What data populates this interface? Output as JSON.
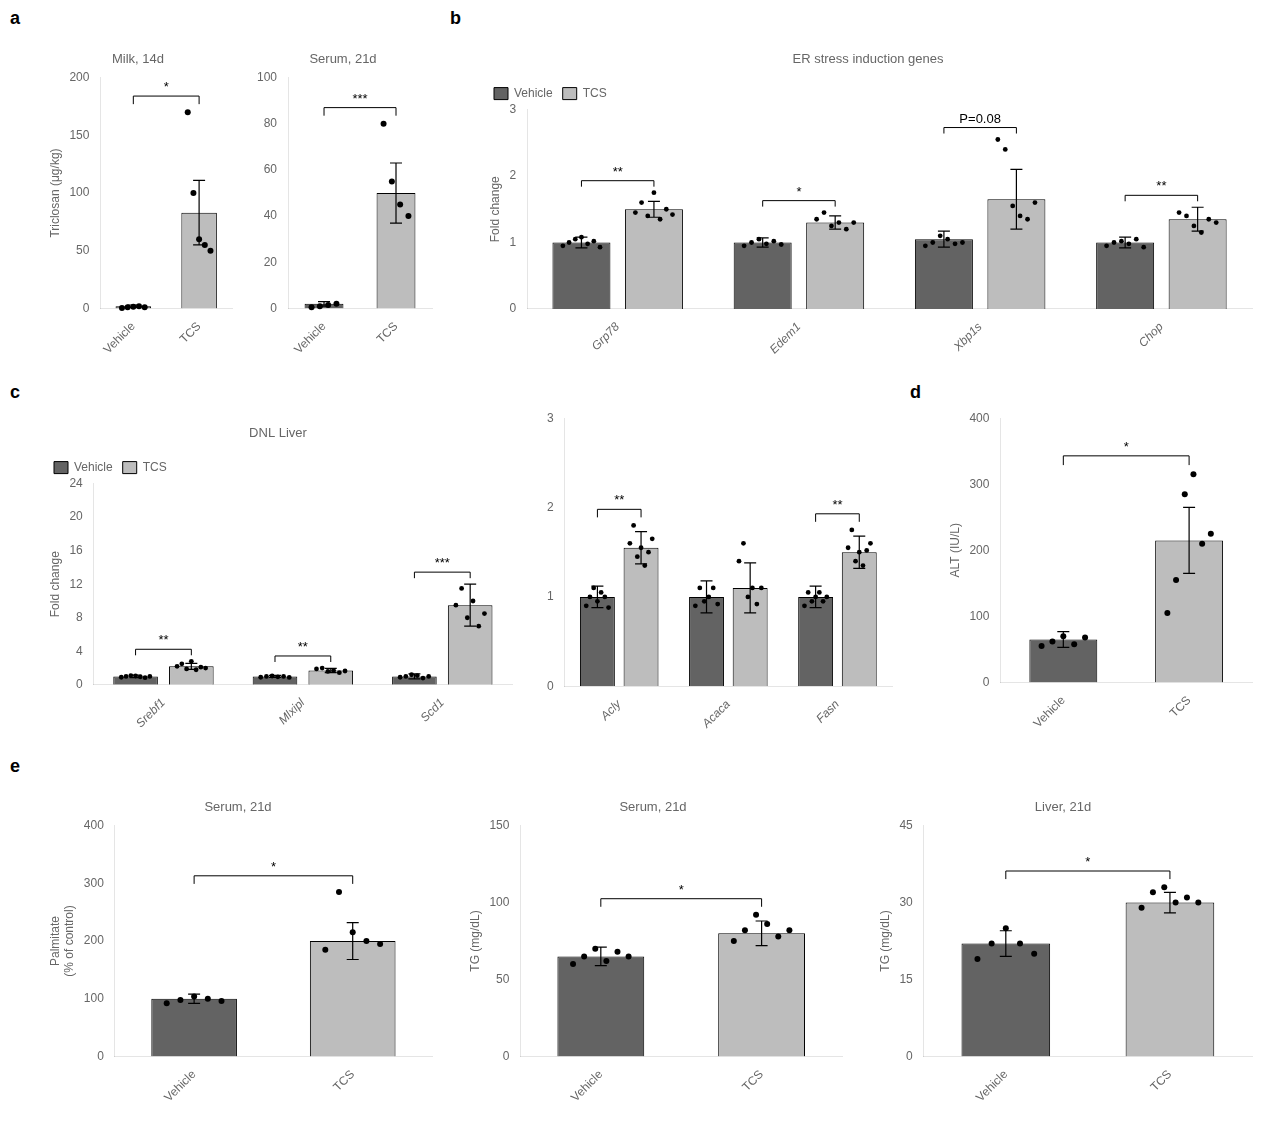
{
  "chart_data": [
    {
      "type": "bar",
      "panel": "a",
      "title": "Milk, 14d",
      "ylabel": "Triclosan (μg/kg)",
      "categories": [
        "Vehicle",
        "TCS"
      ],
      "values": [
        2,
        83
      ],
      "errors": [
        1,
        28
      ],
      "points": [
        [
          0.5,
          1.0,
          1.5,
          2.0,
          1.0
        ],
        [
          170,
          100,
          60,
          55,
          50
        ]
      ],
      "colors": [
        "#636363",
        "#bdbdbd"
      ],
      "ylim": [
        0,
        200
      ],
      "yticks": [
        0,
        50,
        100,
        150,
        200
      ],
      "annotations": [
        "*"
      ],
      "grid": false
    },
    {
      "type": "bar",
      "title": "Serum, 21d",
      "categories": [
        "Vehicle",
        "TCS"
      ],
      "values": [
        2,
        50
      ],
      "errors": [
        1,
        13
      ],
      "points": [
        [
          0.5,
          1.0,
          1.5,
          2.0
        ],
        [
          80,
          55,
          45,
          40
        ]
      ],
      "colors": [
        "#636363",
        "#bdbdbd"
      ],
      "ylim": [
        0,
        100
      ],
      "yticks": [
        0,
        20,
        40,
        60,
        80,
        100
      ],
      "annotations": [
        "***"
      ],
      "grid": false
    },
    {
      "type": "bar",
      "panel": "b",
      "title": "ER stress induction genes",
      "ylabel": "Fold change",
      "categories": [
        "Grp78",
        "Edem1",
        "Xbp1s",
        "Chop"
      ],
      "series": [
        {
          "name": "Vehicle",
          "color": "#636363",
          "values": [
            1.0,
            1.0,
            1.05,
            1.0
          ],
          "errors": [
            0.08,
            0.07,
            0.12,
            0.08
          ],
          "points": [
            [
              0.95,
              1.0,
              1.05,
              1.08,
              0.98,
              1.02,
              0.93
            ],
            [
              0.95,
              1.0,
              1.05,
              0.98,
              1.02,
              0.97
            ],
            [
              0.95,
              1.0,
              1.1,
              1.05,
              0.98,
              1.0
            ],
            [
              0.95,
              1.0,
              1.02,
              0.98,
              1.05,
              0.93
            ]
          ]
        },
        {
          "name": "TCS",
          "color": "#bdbdbd",
          "values": [
            1.5,
            1.3,
            1.65,
            1.35
          ],
          "errors": [
            0.12,
            0.1,
            0.45,
            0.18
          ],
          "points": [
            [
              1.45,
              1.6,
              1.4,
              1.75,
              1.35,
              1.5,
              1.42
            ],
            [
              1.35,
              1.45,
              1.25,
              1.3,
              1.2,
              1.3
            ],
            [
              2.55,
              2.4,
              1.55,
              1.4,
              1.35,
              1.6
            ],
            [
              1.45,
              1.4,
              1.25,
              1.15,
              1.35,
              1.3
            ]
          ]
        }
      ],
      "ylim": [
        0,
        3
      ],
      "yticks": [
        0,
        1,
        2,
        3
      ],
      "annotations": [
        "**",
        "*",
        "P=0.08",
        "**"
      ],
      "legend": "upper left",
      "grid": false
    },
    {
      "type": "bar",
      "panel": "c",
      "title": "DNL Liver",
      "ylabel": "Fold change",
      "categories": [
        "Srebf1",
        "Mlxipl",
        "Scd1"
      ],
      "series": [
        {
          "name": "Vehicle",
          "color": "#636363",
          "values": [
            1.0,
            1.0,
            1.0
          ],
          "errors": [
            0.15,
            0.12,
            0.3
          ],
          "points": [
            [
              0.9,
              1.0,
              1.1,
              1.05,
              0.95,
              0.85,
              1.0
            ],
            [
              0.9,
              1.0,
              1.05,
              0.95,
              1.0,
              0.88
            ],
            [
              0.9,
              1.0,
              1.2,
              1.1,
              0.8,
              1.0
            ]
          ]
        },
        {
          "name": "TCS",
          "color": "#bdbdbd",
          "values": [
            2.2,
            1.7,
            9.5
          ],
          "errors": [
            0.35,
            0.25,
            2.5
          ],
          "points": [
            [
              2.2,
              2.5,
              1.9,
              2.8,
              1.8,
              2.1,
              2.0
            ],
            [
              1.9,
              2.0,
              1.6,
              1.7,
              1.45,
              1.65
            ],
            [
              9.5,
              11.5,
              8.0,
              10.0,
              7.0,
              8.5
            ]
          ]
        }
      ],
      "ylim": [
        0,
        24
      ],
      "yticks": [
        0,
        4,
        8,
        12,
        16,
        20,
        24
      ],
      "annotations": [
        "**",
        "**",
        "***"
      ],
      "legend": "upper left",
      "grid": false
    },
    {
      "type": "bar",
      "categories": [
        "Acly",
        "Acaca",
        "Fasn"
      ],
      "series": [
        {
          "name": "Vehicle",
          "color": "#636363",
          "values": [
            1.0,
            1.0,
            1.0
          ],
          "errors": [
            0.12,
            0.18,
            0.12
          ],
          "points": [
            [
              0.9,
              1.0,
              1.1,
              0.95,
              1.05,
              1.0,
              0.88
            ],
            [
              0.9,
              1.1,
              0.95,
              1.0,
              1.1,
              0.92
            ],
            [
              0.9,
              1.05,
              0.95,
              1.0,
              1.05,
              0.95,
              1.0
            ]
          ]
        },
        {
          "name": "TCS",
          "color": "#bdbdbd",
          "values": [
            1.55,
            1.1,
            1.5
          ],
          "errors": [
            0.18,
            0.28,
            0.18
          ],
          "points": [
            [
              1.6,
              1.8,
              1.45,
              1.55,
              1.35,
              1.5,
              1.65
            ],
            [
              1.4,
              1.6,
              1.0,
              1.1,
              0.92,
              1.1
            ],
            [
              1.55,
              1.75,
              1.4,
              1.5,
              1.35,
              1.52,
              1.6
            ]
          ]
        }
      ],
      "ylim": [
        0,
        3
      ],
      "yticks": [
        0,
        1,
        2,
        3
      ],
      "annotations": [
        "**",
        null,
        "**"
      ],
      "grid": false
    },
    {
      "type": "bar",
      "panel": "d",
      "ylabel": "ALT (IU/L)",
      "categories": [
        "Vehicle",
        "TCS"
      ],
      "values": [
        65,
        215
      ],
      "errors": [
        12,
        50
      ],
      "points": [
        [
          55,
          62,
          70,
          58,
          68
        ],
        [
          105,
          155,
          285,
          315,
          210,
          225
        ]
      ],
      "colors": [
        "#636363",
        "#bdbdbd"
      ],
      "ylim": [
        0,
        400
      ],
      "yticks": [
        0,
        100,
        200,
        300,
        400
      ],
      "annotations": [
        "*"
      ],
      "grid": false
    },
    {
      "type": "bar",
      "panel": "e",
      "title": "Serum, 21d",
      "ylabel": "Palmitate\n(% of control)",
      "categories": [
        "Vehicle",
        "TCS"
      ],
      "values": [
        100,
        200
      ],
      "errors": [
        8,
        32
      ],
      "points": [
        [
          92,
          98,
          104,
          100,
          96
        ],
        [
          185,
          285,
          215,
          200,
          195
        ]
      ],
      "colors": [
        "#636363",
        "#bdbdbd"
      ],
      "ylim": [
        0,
        400
      ],
      "yticks": [
        0,
        100,
        200,
        300,
        400
      ],
      "annotations": [
        "*"
      ],
      "grid": false
    },
    {
      "type": "bar",
      "title": "Serum, 21d",
      "ylabel": "TG (mg/dL)",
      "categories": [
        "Vehicle",
        "TCS"
      ],
      "values": [
        65,
        80
      ],
      "errors": [
        6,
        8
      ],
      "points": [
        [
          60,
          65,
          70,
          62,
          68,
          65
        ],
        [
          75,
          82,
          92,
          86,
          78,
          82
        ]
      ],
      "colors": [
        "#636363",
        "#bdbdbd"
      ],
      "ylim": [
        0,
        150
      ],
      "yticks": [
        0,
        50,
        100,
        150
      ],
      "annotations": [
        "*"
      ],
      "grid": false
    },
    {
      "type": "bar",
      "title": "Liver, 21d",
      "ylabel": "TG (mg/dL)",
      "categories": [
        "Vehicle",
        "TCS"
      ],
      "values": [
        22,
        30
      ],
      "errors": [
        2.5,
        2
      ],
      "points": [
        [
          19,
          22,
          25,
          22,
          20
        ],
        [
          29,
          32,
          33,
          30,
          31,
          30
        ]
      ],
      "colors": [
        "#636363",
        "#bdbdbd"
      ],
      "ylim": [
        0,
        45
      ],
      "yticks": [
        0,
        15,
        30,
        45
      ],
      "annotations": [
        "*"
      ],
      "grid": false
    }
  ]
}
